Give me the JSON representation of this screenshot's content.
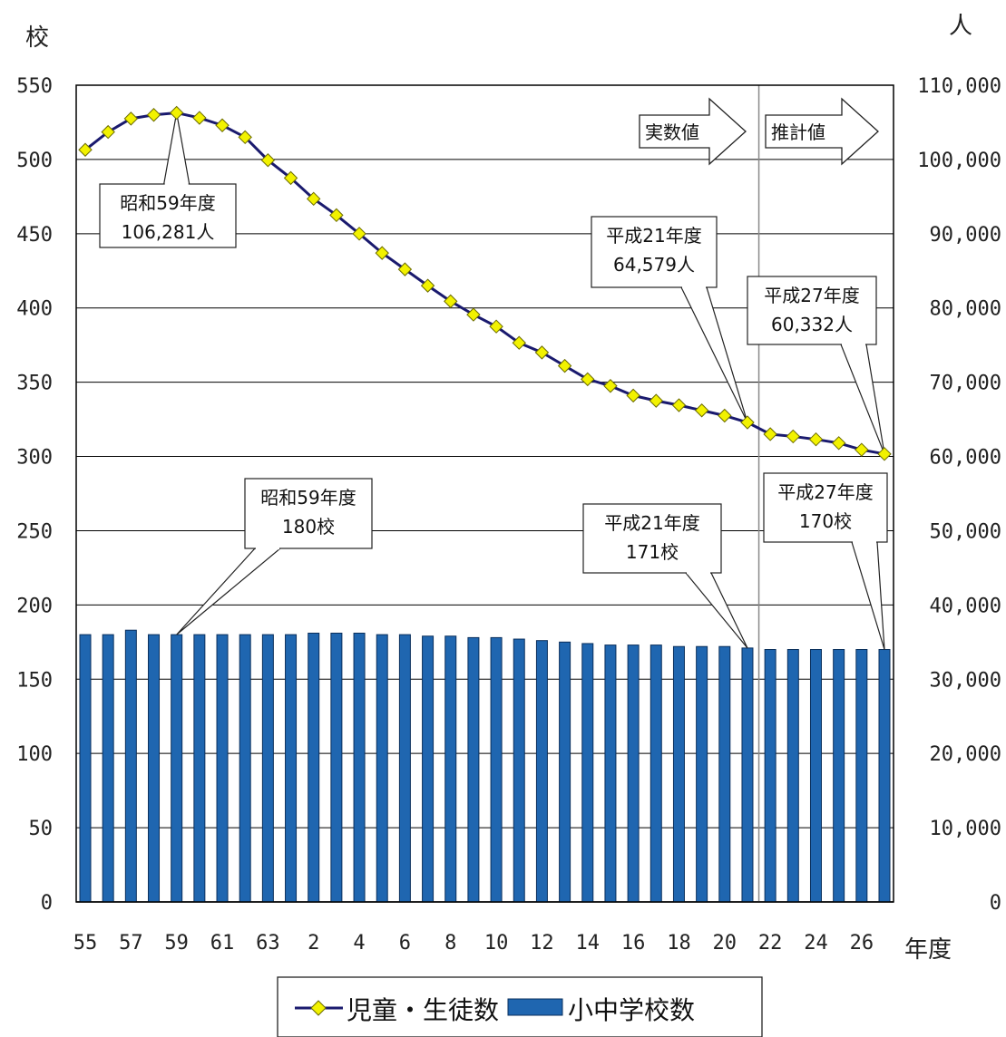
{
  "chart_data": {
    "type": "bar+line",
    "y_left_label": "校",
    "y_right_label": "人",
    "x_label": "年度",
    "y_left_range": [
      0,
      550
    ],
    "y_left_ticks": [
      "0",
      "50",
      "100",
      "150",
      "200",
      "250",
      "300",
      "350",
      "400",
      "450",
      "500",
      "550"
    ],
    "y_right_range": [
      0,
      110000
    ],
    "y_right_ticks": [
      "0",
      "10,000",
      "20,000",
      "30,000",
      "40,000",
      "50,000",
      "60,000",
      "70,000",
      "80,000",
      "90,000",
      "100,000",
      "110,000"
    ],
    "x_categories": [
      "55",
      "56",
      "57",
      "58",
      "59",
      "60",
      "61",
      "62",
      "63",
      "1",
      "2",
      "3",
      "4",
      "5",
      "6",
      "7",
      "8",
      "9",
      "10",
      "11",
      "12",
      "13",
      "14",
      "15",
      "16",
      "17",
      "18",
      "19",
      "20",
      "21",
      "22",
      "23",
      "24",
      "25",
      "26",
      "27"
    ],
    "x_tick_labels": [
      "55",
      "57",
      "59",
      "61",
      "63",
      "2",
      "4",
      "6",
      "8",
      "10",
      "12",
      "14",
      "16",
      "18",
      "20",
      "22",
      "24",
      "26"
    ],
    "series": [
      {
        "name": "児童・生徒数",
        "axis": "right",
        "kind": "line",
        "values": [
          101300,
          103700,
          105500,
          106000,
          106281,
          105600,
          104600,
          103000,
          99900,
          97500,
          94700,
          92500,
          90000,
          87400,
          85200,
          83000,
          80900,
          79100,
          77500,
          75300,
          74000,
          72200,
          70400,
          69500,
          68200,
          67500,
          66900,
          66200,
          65500,
          64579,
          63000,
          62700,
          62300,
          61800,
          60900,
          60332
        ]
      },
      {
        "name": "小中学校数",
        "axis": "left",
        "kind": "bar",
        "values": [
          180,
          180,
          183,
          180,
          180,
          180,
          180,
          180,
          180,
          180,
          181,
          181,
          181,
          180,
          180,
          179,
          179,
          178,
          178,
          177,
          176,
          175,
          174,
          173,
          173,
          173,
          172,
          172,
          172,
          171,
          170,
          170,
          170,
          170,
          170,
          170
        ]
      }
    ],
    "period_markers": [
      {
        "label": "実数値",
        "after_index": 29
      },
      {
        "label": "推計値",
        "after_index": 29
      }
    ],
    "annotations": [
      {
        "line1": "昭和59年度",
        "line2": "106,281人",
        "index": 4,
        "series": "児童・生徒数"
      },
      {
        "line1": "平成21年度",
        "line2": "64,579人",
        "index": 29,
        "series": "児童・生徒数"
      },
      {
        "line1": "平成27年度",
        "line2": "60,332人",
        "index": 35,
        "series": "児童・生徒数"
      },
      {
        "line1": "昭和59年度",
        "line2": "180校",
        "index": 4,
        "series": "小中学校数"
      },
      {
        "line1": "平成21年度",
        "line2": "171校",
        "index": 29,
        "series": "小中学校数"
      },
      {
        "line1": "平成27年度",
        "line2": "170校",
        "index": 35,
        "series": "小中学校数"
      }
    ],
    "colors": {
      "bar_fill": "#1f66b0",
      "bar_stroke": "#0a2f5c",
      "line": "#1a1a6e",
      "marker_fill": "#f2f200",
      "marker_stroke": "#6b6b00",
      "grid": "#000000"
    },
    "grid": true,
    "legend_position": "bottom-center"
  }
}
